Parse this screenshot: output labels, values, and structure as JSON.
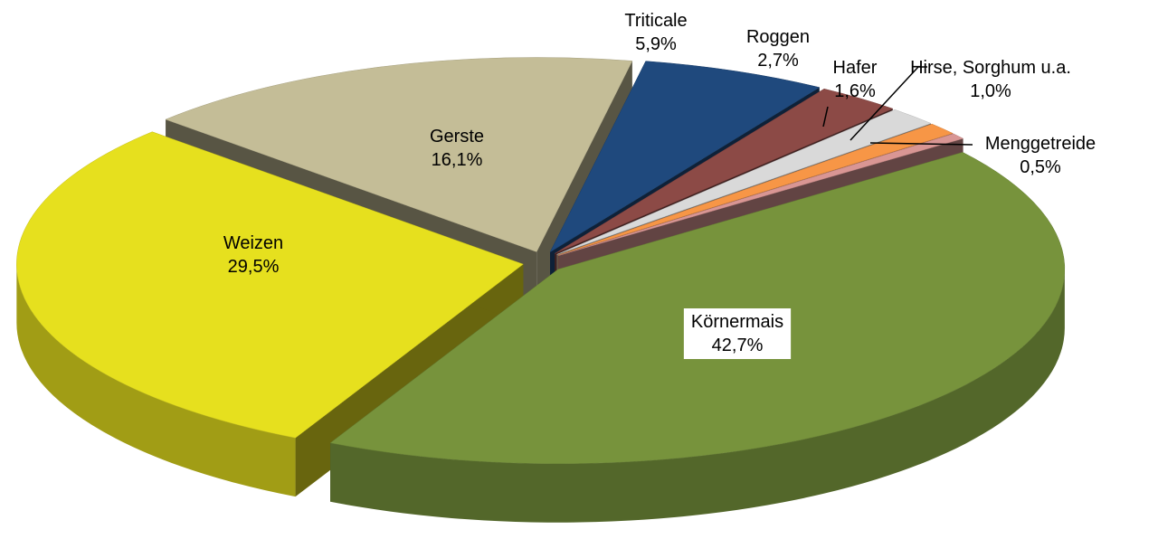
{
  "chart_data": {
    "type": "pie3d",
    "categories": [
      "Körnermais",
      "Weizen",
      "Gerste",
      "Triticale",
      "Roggen",
      "Hafer",
      "Hirse, Sorghum u.a.",
      "Menggetreide"
    ],
    "values": [
      42.7,
      29.5,
      16.1,
      5.9,
      2.7,
      1.6,
      1.0,
      0.5
    ],
    "value_labels": [
      "42,7%",
      "29,5%",
      "16,1%",
      "5,9%",
      "2,7%",
      "1,6%",
      "1,0%",
      "0,5%"
    ],
    "colors": [
      "#77933c",
      "#e6e01e",
      "#c4bd97",
      "#1f497d",
      "#8c4a46",
      "#d9d9d9",
      "#f79646",
      "#d99694"
    ]
  }
}
